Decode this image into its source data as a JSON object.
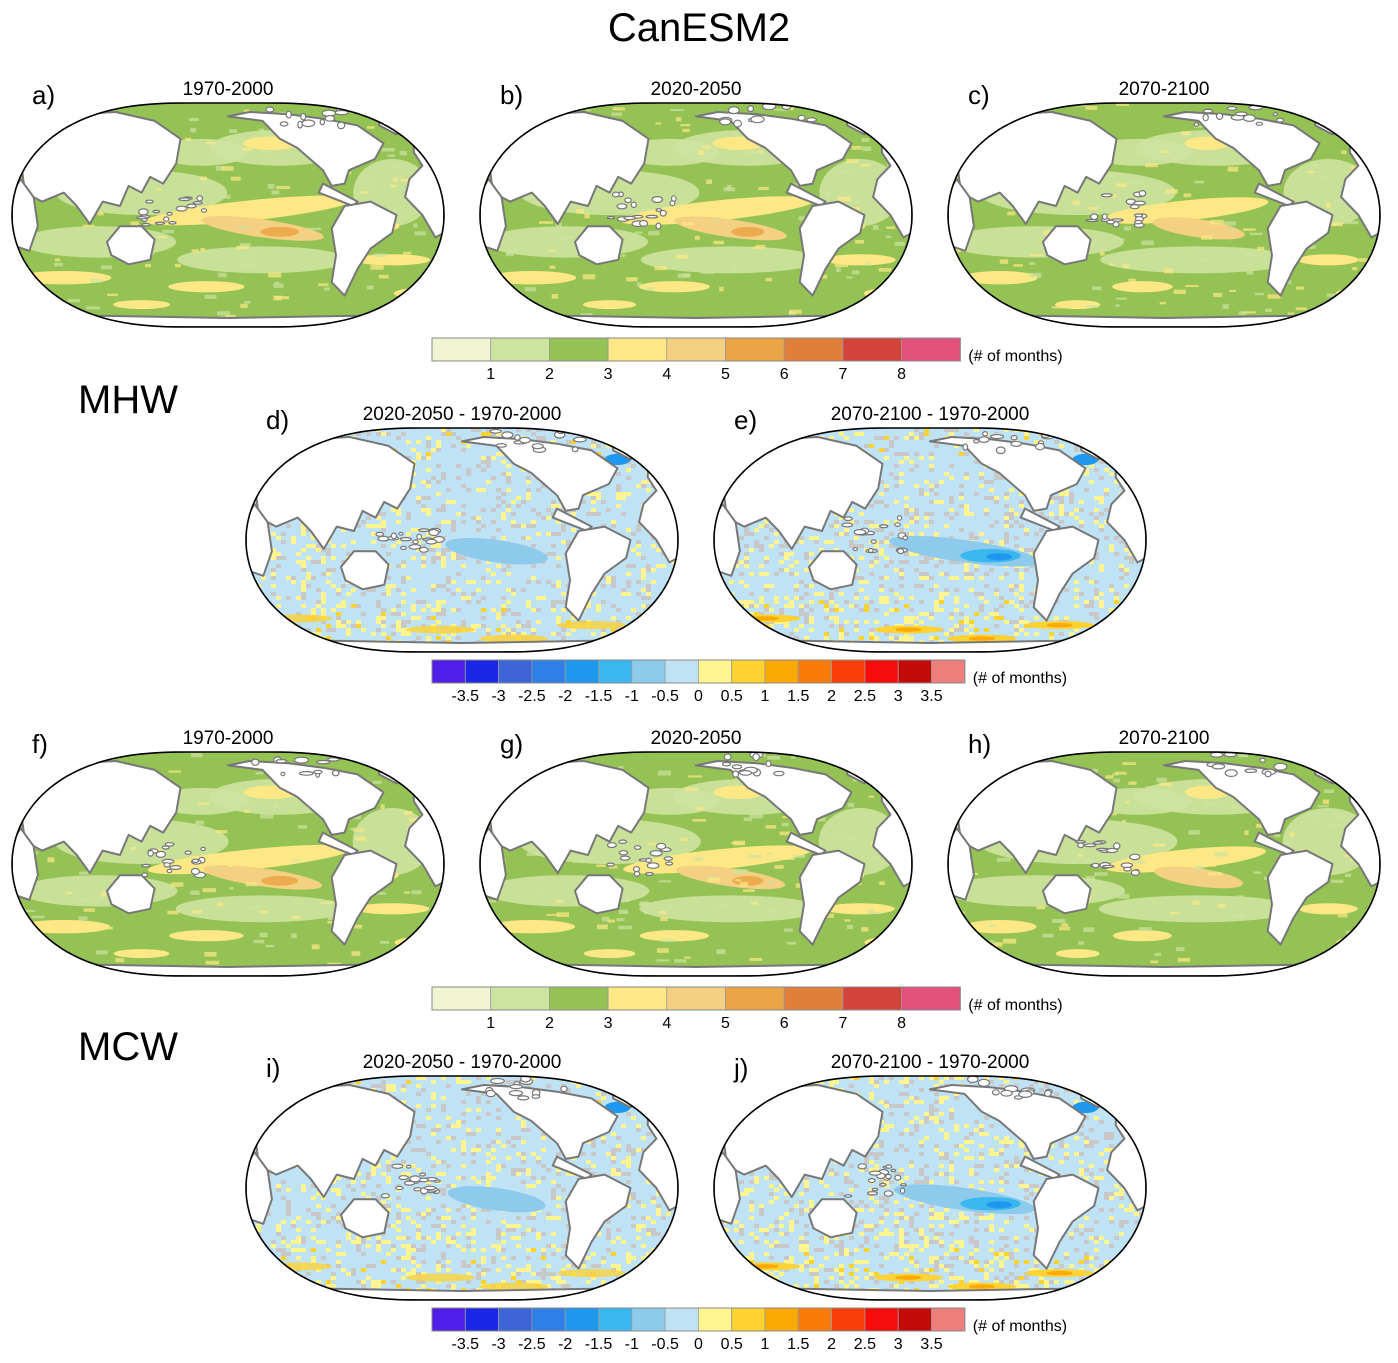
{
  "title": "CanESM2",
  "sections": [
    {
      "id": "mhw",
      "label": "MHW"
    },
    {
      "id": "mcw",
      "label": "MCW"
    }
  ],
  "colors": {
    "ocean_base": "#95c255",
    "land": "#ffffff",
    "coast": "#777777",
    "outline": "#000000",
    "diff_base": "#bfe2f5"
  },
  "panels": [
    {
      "letter": "a)",
      "title": "1970-2000",
      "kind": "abs",
      "row": 0,
      "col": 0,
      "intensity": 1.0
    },
    {
      "letter": "b)",
      "title": "2020-2050",
      "kind": "abs",
      "row": 0,
      "col": 1,
      "intensity": 0.85
    },
    {
      "letter": "c)",
      "title": "2070-2100",
      "kind": "abs",
      "row": 0,
      "col": 2,
      "intensity": 0.55
    },
    {
      "letter": "d)",
      "title": "2020-2050 - 1970-2000",
      "kind": "diff",
      "row": 1,
      "col": 0,
      "intensity": 0.5
    },
    {
      "letter": "e)",
      "title": "2070-2100 - 1970-2000",
      "kind": "diff",
      "row": 1,
      "col": 1,
      "intensity": 1.0
    },
    {
      "letter": "f)",
      "title": "1970-2000",
      "kind": "abs",
      "row": 2,
      "col": 0,
      "intensity": 0.95
    },
    {
      "letter": "g)",
      "title": "2020-2050",
      "kind": "abs",
      "row": 2,
      "col": 1,
      "intensity": 0.8
    },
    {
      "letter": "h)",
      "title": "2070-2100",
      "kind": "abs",
      "row": 2,
      "col": 2,
      "intensity": 0.5
    },
    {
      "letter": "i)",
      "title": "2020-2050 - 1970-2000",
      "kind": "diff",
      "row": 3,
      "col": 0,
      "intensity": 0.45
    },
    {
      "letter": "j)",
      "title": "2070-2100 - 1970-2000",
      "kind": "diff",
      "row": 3,
      "col": 1,
      "intensity": 0.9
    }
  ],
  "chart_data": {
    "type": "heatmap",
    "title": "CanESM2",
    "projection": "Robinson (Pacific-centered)",
    "colorbars": [
      {
        "id": "abs",
        "unit": "(# of months)",
        "bounds": [
          1,
          2,
          3,
          4,
          5,
          6,
          7,
          8
        ],
        "tick_labels": [
          "1",
          "2",
          "3",
          "4",
          "5",
          "6",
          "7",
          "8"
        ],
        "colors": [
          "#f1f5d3",
          "#cde3a0",
          "#95c255",
          "#fde885",
          "#f3d082",
          "#eba446",
          "#df7f3a",
          "#d3433c",
          "#e2507c"
        ]
      },
      {
        "id": "diff",
        "unit": "(# of months)",
        "bounds": [
          -3.5,
          -3,
          -2.5,
          -2,
          -1.5,
          -1,
          -0.5,
          0,
          0.5,
          1,
          1.5,
          2,
          2.5,
          3,
          3.5
        ],
        "tick_labels": [
          "-3.5",
          "-3",
          "-2.5",
          "-2",
          "-1.5",
          "-1",
          "-0.5",
          "0",
          "0.5",
          "1",
          "1.5",
          "2",
          "2.5",
          "3",
          "3.5"
        ],
        "colors": [
          "#4f1ee8",
          "#1a27e6",
          "#3e65d8",
          "#2f7fe6",
          "#1e98ee",
          "#39b7ef",
          "#8dcaec",
          "#bfe2f5",
          "#fff590",
          "#fdd231",
          "#fca902",
          "#fb7a08",
          "#fb3f0a",
          "#f70c0c",
          "#c20a08",
          "#ee7d7b"
        ]
      }
    ]
  }
}
